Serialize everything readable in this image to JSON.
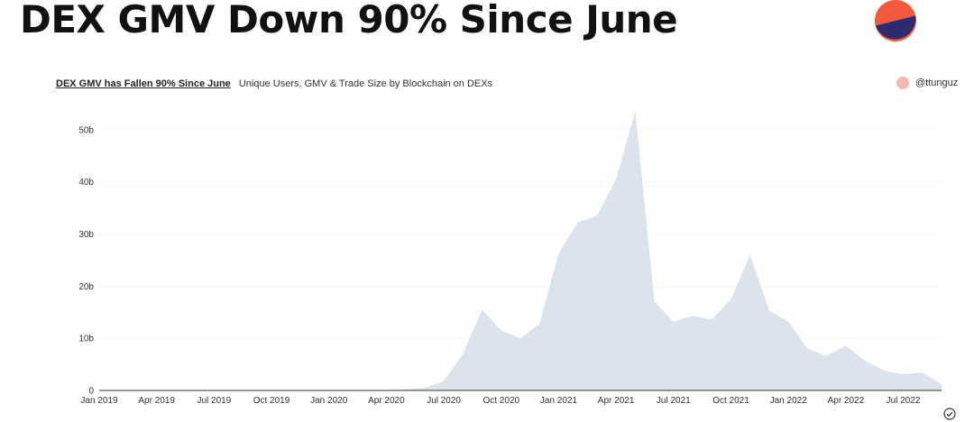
{
  "header": {
    "title": "DEX GMV Down 90% Since June"
  },
  "colors": {
    "logo_top": "#f25a3c",
    "logo_bottom": "#2e2a6e",
    "area_fill": "#dde3ec",
    "attribution_dot": "#f5b8ac",
    "grid": "#eeeeee"
  },
  "icons": {
    "logo": "pie-logo-icon",
    "check": "check-circle-icon"
  },
  "attribution": "@ttunguz",
  "chart_data": {
    "type": "area",
    "title": "DEX GMV has Fallen 90% Since June",
    "subtitle": "Unique Users, GMV & Trade Size by Blockchain on DEXs",
    "xlabel": "",
    "ylabel": "",
    "grid": true,
    "legend": "top-right",
    "x_ticks": [
      "Jan 2019",
      "Apr 2019",
      "Jul 2019",
      "Oct 2019",
      "Jan 2020",
      "Apr 2020",
      "Jul 2020",
      "Oct 2020",
      "Jan 2021",
      "Apr 2021",
      "Jul 2021",
      "Oct 2021",
      "Jan 2022",
      "Apr 2022",
      "Jul 2022"
    ],
    "y_ticks": [
      "0",
      "10b",
      "20b",
      "30b",
      "40b",
      "50b"
    ],
    "ylim": [
      0,
      55
    ],
    "x": [
      "2019-01",
      "2019-02",
      "2019-03",
      "2019-04",
      "2019-05",
      "2019-06",
      "2019-07",
      "2019-08",
      "2019-09",
      "2019-10",
      "2019-11",
      "2019-12",
      "2020-01",
      "2020-02",
      "2020-03",
      "2020-04",
      "2020-05",
      "2020-06",
      "2020-07",
      "2020-08",
      "2020-09",
      "2020-10",
      "2020-11",
      "2020-12",
      "2021-01",
      "2021-02",
      "2021-03",
      "2021-04",
      "2021-05",
      "2021-06",
      "2021-07",
      "2021-08",
      "2021-09",
      "2021-10",
      "2021-11",
      "2021-12",
      "2022-01",
      "2022-02",
      "2022-03",
      "2022-04",
      "2022-05",
      "2022-06",
      "2022-07",
      "2022-08",
      "2022-09"
    ],
    "series": [
      {
        "values": [
          0.1,
          0.1,
          0.1,
          0.1,
          0.1,
          0.1,
          0.1,
          0.1,
          0.1,
          0.1,
          0.1,
          0.1,
          0.1,
          0.1,
          0.1,
          0.1,
          0.2,
          0.5,
          1.8,
          7,
          15.5,
          11.5,
          10,
          12.8,
          26.3,
          32.2,
          33.5,
          40.5,
          53.5,
          17,
          13.2,
          14.3,
          13.6,
          17.5,
          26,
          15.3,
          13.2,
          8,
          6.6,
          8.6,
          5.7,
          3.8,
          3.1,
          3.4,
          1.2
        ]
      }
    ]
  }
}
